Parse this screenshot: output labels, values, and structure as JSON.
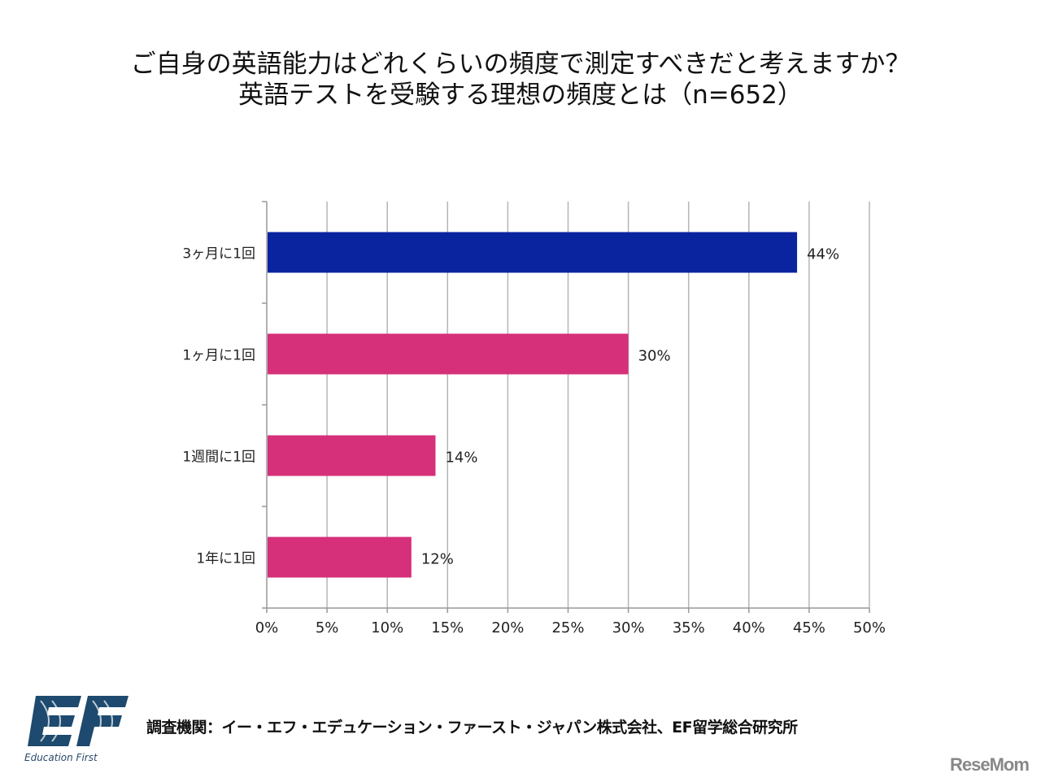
{
  "chart_data": {
    "type": "bar",
    "orientation": "horizontal",
    "title": "ご自身の英語能力はどれくらいの頻度で測定すべきだと考えますか？",
    "subtitle": "英語テストを受験する理想の頻度とは（n=652）",
    "categories": [
      "3ヶ月に1回",
      "1ヶ月に1回",
      "1週間に1回",
      "1年に1回"
    ],
    "values": [
      44,
      30,
      14,
      12
    ],
    "data_labels": [
      "44%",
      "30%",
      "14%",
      "12%"
    ],
    "bar_colors": [
      "#0a24a0",
      "#d6307a",
      "#d6307a",
      "#d6307a"
    ],
    "xlim": [
      0,
      50
    ],
    "x_ticks": [
      "0%",
      "5%",
      "10%",
      "15%",
      "20%",
      "25%",
      "30%",
      "35%",
      "40%",
      "45%",
      "50%"
    ],
    "xlabel": "",
    "ylabel": "",
    "grid": "vertical"
  },
  "footer": {
    "source": "調査機関：イー・エフ・エデュケーション・ファースト・ジャパン株式会社、EF留学総合研究所",
    "logo_text": "EF",
    "logo_caption": "Education First",
    "watermark": "ReseMom"
  }
}
